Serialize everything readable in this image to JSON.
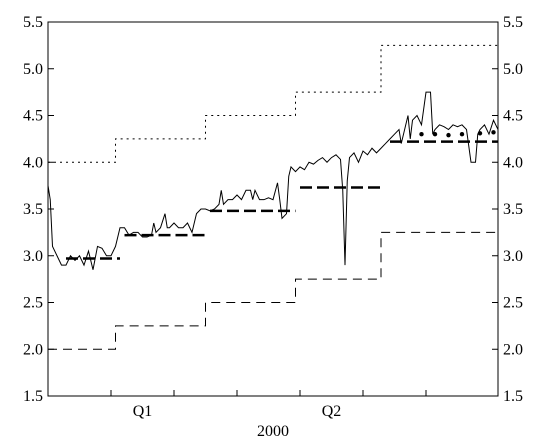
{
  "chart_data": {
    "type": "line",
    "title": "",
    "xlabel": "2000",
    "ylabel": "",
    "xlim": [
      0,
      1
    ],
    "ylim": [
      1.5,
      5.5
    ],
    "y_ticks": [
      "1.5",
      "2.0",
      "2.5",
      "3.0",
      "3.5",
      "4.0",
      "4.5",
      "5.0",
      "5.5"
    ],
    "y_tick_values": [
      1.5,
      2.0,
      2.5,
      3.0,
      3.5,
      4.0,
      4.5,
      5.0,
      5.5
    ],
    "y_axis_both_sides": true,
    "x_quarter_labels": [
      {
        "label": "Q1",
        "x": 0.21
      },
      {
        "label": "Q2",
        "x": 0.63
      }
    ],
    "x_minor_ticks": [
      0.14,
      0.28,
      0.42,
      0.56,
      0.7,
      0.84
    ],
    "grid": false,
    "legend": "none",
    "colors": {
      "line": "#000000",
      "background": "#ffffff"
    },
    "series": [
      {
        "style": "dotted",
        "steps": [
          {
            "x0": 0.0,
            "x1": 0.15,
            "y": 4.0
          },
          {
            "x0": 0.15,
            "x1": 0.35,
            "y": 4.25
          },
          {
            "x0": 0.35,
            "x1": 0.55,
            "y": 4.5
          },
          {
            "x0": 0.55,
            "x1": 0.74,
            "y": 4.75
          },
          {
            "x0": 0.74,
            "x1": 1.0,
            "y": 5.25
          }
        ]
      },
      {
        "style": "dashed",
        "steps": [
          {
            "x0": 0.0,
            "x1": 0.15,
            "y": 2.0
          },
          {
            "x0": 0.15,
            "x1": 0.35,
            "y": 2.25
          },
          {
            "x0": 0.35,
            "x1": 0.55,
            "y": 2.5
          },
          {
            "x0": 0.55,
            "x1": 0.74,
            "y": 2.75
          },
          {
            "x0": 0.74,
            "x1": 1.0,
            "y": 3.25
          }
        ]
      },
      {
        "style": "thick-dashed",
        "segments": [
          {
            "x0": 0.04,
            "x1": 0.16,
            "y": 2.97
          },
          {
            "x0": 0.17,
            "x1": 0.35,
            "y": 3.22
          },
          {
            "x0": 0.36,
            "x1": 0.55,
            "y": 3.48
          },
          {
            "x0": 0.56,
            "x1": 0.74,
            "y": 3.73
          },
          {
            "x0": 0.76,
            "x1": 1.0,
            "y": 4.22
          }
        ]
      },
      {
        "style": "dots",
        "points": [
          {
            "x": 0.83,
            "y": 4.3
          },
          {
            "x": 0.86,
            "y": 4.3
          },
          {
            "x": 0.89,
            "y": 4.29
          },
          {
            "x": 0.92,
            "y": 4.3
          },
          {
            "x": 0.96,
            "y": 4.31
          },
          {
            "x": 0.99,
            "y": 4.32
          }
        ]
      },
      {
        "style": "solid",
        "points": [
          [
            0.0,
            3.75
          ],
          [
            0.005,
            3.6
          ],
          [
            0.01,
            3.1
          ],
          [
            0.02,
            3.0
          ],
          [
            0.03,
            2.9
          ],
          [
            0.04,
            2.9
          ],
          [
            0.05,
            3.0
          ],
          [
            0.06,
            2.95
          ],
          [
            0.07,
            3.0
          ],
          [
            0.08,
            2.9
          ],
          [
            0.09,
            3.05
          ],
          [
            0.1,
            2.85
          ],
          [
            0.11,
            3.1
          ],
          [
            0.12,
            3.08
          ],
          [
            0.13,
            3.0
          ],
          [
            0.14,
            3.0
          ],
          [
            0.15,
            3.1
          ],
          [
            0.16,
            3.3
          ],
          [
            0.17,
            3.3
          ],
          [
            0.18,
            3.22
          ],
          [
            0.19,
            3.25
          ],
          [
            0.2,
            3.25
          ],
          [
            0.21,
            3.2
          ],
          [
            0.22,
            3.2
          ],
          [
            0.23,
            3.22
          ],
          [
            0.235,
            3.35
          ],
          [
            0.24,
            3.25
          ],
          [
            0.25,
            3.3
          ],
          [
            0.26,
            3.45
          ],
          [
            0.265,
            3.3
          ],
          [
            0.27,
            3.3
          ],
          [
            0.28,
            3.35
          ],
          [
            0.29,
            3.3
          ],
          [
            0.3,
            3.3
          ],
          [
            0.31,
            3.35
          ],
          [
            0.32,
            3.25
          ],
          [
            0.33,
            3.45
          ],
          [
            0.34,
            3.5
          ],
          [
            0.35,
            3.5
          ],
          [
            0.36,
            3.48
          ],
          [
            0.37,
            3.5
          ],
          [
            0.38,
            3.55
          ],
          [
            0.385,
            3.7
          ],
          [
            0.39,
            3.55
          ],
          [
            0.4,
            3.6
          ],
          [
            0.41,
            3.6
          ],
          [
            0.42,
            3.65
          ],
          [
            0.43,
            3.6
          ],
          [
            0.44,
            3.7
          ],
          [
            0.45,
            3.7
          ],
          [
            0.455,
            3.6
          ],
          [
            0.46,
            3.7
          ],
          [
            0.47,
            3.6
          ],
          [
            0.48,
            3.6
          ],
          [
            0.49,
            3.62
          ],
          [
            0.5,
            3.6
          ],
          [
            0.51,
            3.78
          ],
          [
            0.515,
            3.6
          ],
          [
            0.52,
            3.4
          ],
          [
            0.53,
            3.45
          ],
          [
            0.535,
            3.85
          ],
          [
            0.54,
            3.95
          ],
          [
            0.55,
            3.9
          ],
          [
            0.56,
            3.95
          ],
          [
            0.57,
            3.92
          ],
          [
            0.58,
            4.0
          ],
          [
            0.59,
            3.98
          ],
          [
            0.6,
            4.02
          ],
          [
            0.61,
            4.05
          ],
          [
            0.62,
            4.0
          ],
          [
            0.63,
            4.05
          ],
          [
            0.64,
            4.08
          ],
          [
            0.65,
            4.03
          ],
          [
            0.655,
            3.7
          ],
          [
            0.66,
            2.9
          ],
          [
            0.665,
            3.8
          ],
          [
            0.67,
            4.05
          ],
          [
            0.68,
            4.1
          ],
          [
            0.69,
            4.0
          ],
          [
            0.7,
            4.12
          ],
          [
            0.71,
            4.08
          ],
          [
            0.72,
            4.15
          ],
          [
            0.73,
            4.1
          ],
          [
            0.74,
            4.15
          ],
          [
            0.75,
            4.2
          ],
          [
            0.76,
            4.25
          ],
          [
            0.77,
            4.3
          ],
          [
            0.78,
            4.35
          ],
          [
            0.785,
            4.2
          ],
          [
            0.79,
            4.3
          ],
          [
            0.8,
            4.5
          ],
          [
            0.805,
            4.25
          ],
          [
            0.81,
            4.45
          ],
          [
            0.82,
            4.5
          ],
          [
            0.83,
            4.4
          ],
          [
            0.84,
            4.75
          ],
          [
            0.85,
            4.75
          ],
          [
            0.855,
            4.3
          ],
          [
            0.86,
            4.35
          ],
          [
            0.87,
            4.4
          ],
          [
            0.88,
            4.38
          ],
          [
            0.89,
            4.35
          ],
          [
            0.9,
            4.4
          ],
          [
            0.91,
            4.38
          ],
          [
            0.92,
            4.4
          ],
          [
            0.93,
            4.35
          ],
          [
            0.94,
            4.0
          ],
          [
            0.95,
            4.0
          ],
          [
            0.955,
            4.3
          ],
          [
            0.96,
            4.35
          ],
          [
            0.97,
            4.4
          ],
          [
            0.98,
            4.3
          ],
          [
            0.99,
            4.45
          ],
          [
            1.0,
            4.35
          ]
        ]
      }
    ]
  }
}
